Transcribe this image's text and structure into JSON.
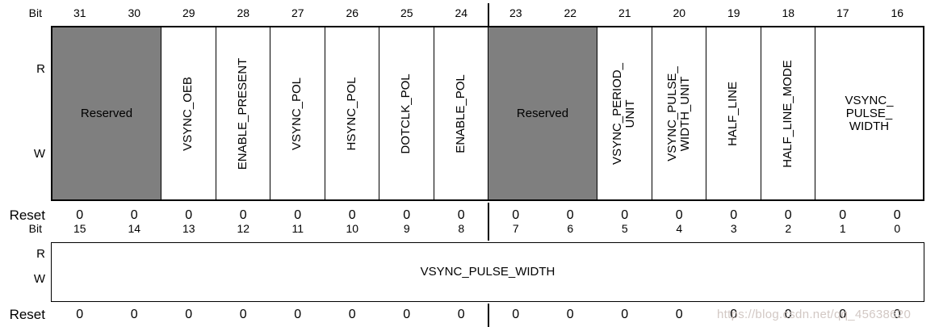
{
  "colors": {
    "background": "#ffffff",
    "text": "#000000",
    "border": "#000000",
    "reserved_fill": "#7f7f7f",
    "watermark": "#d2c8c4"
  },
  "register_upper": {
    "bit_label": "Bit",
    "bit_numbers": [
      "31",
      "30",
      "29",
      "28",
      "27",
      "26",
      "25",
      "24",
      "23",
      "22",
      "21",
      "20",
      "19",
      "18",
      "17",
      "16"
    ],
    "r_label": "R",
    "w_label": "W",
    "reset_label": "Reset",
    "reset_values": [
      "0",
      "0",
      "0",
      "0",
      "0",
      "0",
      "0",
      "0",
      "0",
      "0",
      "0",
      "0",
      "0",
      "0",
      "0",
      "0"
    ],
    "fields": [
      {
        "label": "Reserved",
        "bits": 2,
        "reserved": true,
        "orientation": "horizontal"
      },
      {
        "label": "VSYNC_OEB",
        "bits": 1,
        "reserved": false,
        "orientation": "vertical"
      },
      {
        "label": "ENABLE_PRESENT",
        "bits": 1,
        "reserved": false,
        "orientation": "vertical"
      },
      {
        "label": "VSYNC_POL",
        "bits": 1,
        "reserved": false,
        "orientation": "vertical"
      },
      {
        "label": "HSYNC_POL",
        "bits": 1,
        "reserved": false,
        "orientation": "vertical"
      },
      {
        "label": "DOTCLK_POL",
        "bits": 1,
        "reserved": false,
        "orientation": "vertical"
      },
      {
        "label": "ENABLE_POL",
        "bits": 1,
        "reserved": false,
        "orientation": "vertical"
      },
      {
        "label": "Reserved",
        "bits": 2,
        "reserved": true,
        "orientation": "horizontal"
      },
      {
        "label": "VSYNC_PERIOD_\nUNIT",
        "bits": 1,
        "reserved": false,
        "orientation": "vertical"
      },
      {
        "label": "VSYNC_PULSE_\nWIDTH_UNIT",
        "bits": 1,
        "reserved": false,
        "orientation": "vertical"
      },
      {
        "label": "HALF_LINE",
        "bits": 1,
        "reserved": false,
        "orientation": "vertical"
      },
      {
        "label": "HALF_LINE_MODE",
        "bits": 1,
        "reserved": false,
        "orientation": "vertical"
      },
      {
        "label": "VSYNC_\nPULSE_\nWIDTH",
        "bits": 2,
        "reserved": false,
        "orientation": "horizontal"
      }
    ]
  },
  "register_lower": {
    "bit_label": "Bit",
    "bit_numbers": [
      "15",
      "14",
      "13",
      "12",
      "11",
      "10",
      "9",
      "8",
      "7",
      "6",
      "5",
      "4",
      "3",
      "2",
      "1",
      "0"
    ],
    "r_label": "R",
    "w_label": "W",
    "reset_label": "Reset",
    "reset_values": [
      "0",
      "0",
      "0",
      "0",
      "0",
      "0",
      "0",
      "0",
      "0",
      "0",
      "0",
      "0",
      "0",
      "0",
      "0",
      "0"
    ],
    "fields": [
      {
        "label": "VSYNC_PULSE_WIDTH",
        "bits": 16,
        "reserved": false,
        "orientation": "horizontal"
      }
    ]
  },
  "watermark": {
    "text": "https://blog.csdn.net/qq_45638620"
  }
}
